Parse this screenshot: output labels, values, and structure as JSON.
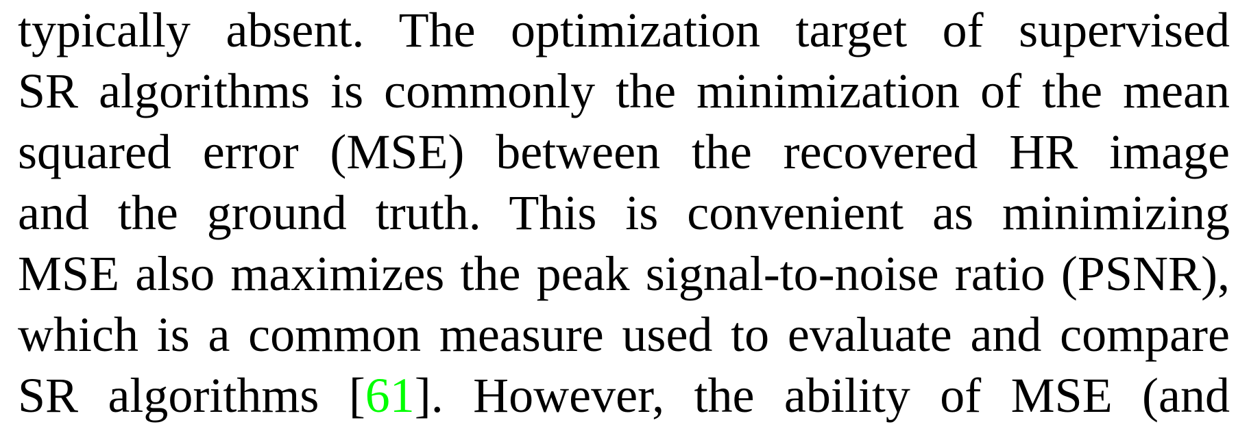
{
  "paragraph": {
    "lines": [
      {
        "text": "typically absent.  The optimization target of supervised"
      },
      {
        "text": "SR algorithms is commonly the minimization of the mean"
      },
      {
        "text": "squared error (MSE) between the recovered HR image"
      },
      {
        "text": "and the ground truth.  This is convenient as minimizing"
      },
      {
        "text": "MSE also maximizes the peak signal-to-noise ratio (PSNR),"
      },
      {
        "text": "which is a common measure used to evaluate and compare"
      }
    ],
    "last_line": {
      "before": "SR algorithms [",
      "citation": "61",
      "after": "].  However, the ability of MSE (and"
    }
  },
  "colors": {
    "text": "#000000",
    "citation_link": "#00ff00",
    "background": "#ffffff"
  }
}
